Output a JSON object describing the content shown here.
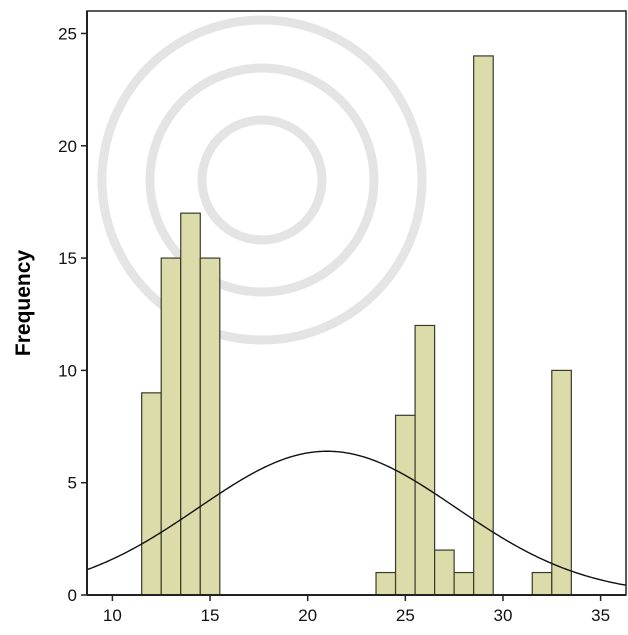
{
  "chart_data": {
    "type": "bar",
    "subtype": "histogram-with-normal-curve",
    "title": "",
    "xlabel": "",
    "ylabel": "Frequency",
    "xlim": [
      8.7,
      36.3
    ],
    "ylim": [
      0,
      26
    ],
    "xticks": [
      "10",
      "15",
      "20",
      "25",
      "30",
      "35"
    ],
    "yticks": [
      "0",
      "5",
      "10",
      "15",
      "20",
      "25"
    ],
    "bin_width": 1,
    "bins": [
      {
        "start": 11.5,
        "end": 12.5,
        "value": 9
      },
      {
        "start": 12.5,
        "end": 13.5,
        "value": 15
      },
      {
        "start": 13.5,
        "end": 14.5,
        "value": 17
      },
      {
        "start": 14.5,
        "end": 15.5,
        "value": 15
      },
      {
        "start": 23.5,
        "end": 24.5,
        "value": 1
      },
      {
        "start": 24.5,
        "end": 25.5,
        "value": 8
      },
      {
        "start": 25.5,
        "end": 26.5,
        "value": 12
      },
      {
        "start": 26.5,
        "end": 27.5,
        "value": 2
      },
      {
        "start": 27.5,
        "end": 28.5,
        "value": 1
      },
      {
        "start": 28.5,
        "end": 29.5,
        "value": 24
      },
      {
        "start": 31.5,
        "end": 32.5,
        "value": 1
      },
      {
        "start": 32.5,
        "end": 33.5,
        "value": 10
      }
    ],
    "normal_curve": {
      "mean": 21,
      "peak_frequency": 6.4,
      "sd": 6.6
    },
    "grid": false,
    "colors": {
      "bar_fill": "#dcdcab",
      "bar_stroke": "#3a3a2a",
      "curve": "#111111",
      "axis": "#222222"
    }
  }
}
